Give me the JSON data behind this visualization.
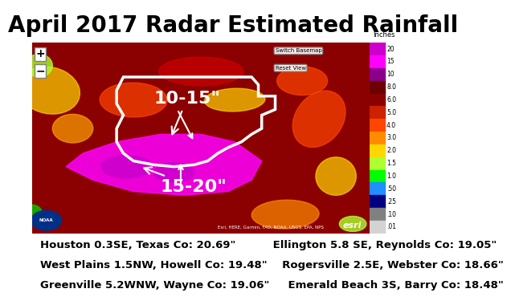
{
  "title": "April 2017 Radar Estimated Rainfall",
  "title_fontsize": 20,
  "title_fontweight": "bold",
  "background_color": "#ffffff",
  "map_bg": "#8B0000",
  "colorbar_labels": [
    "20",
    "15",
    "10",
    "8.0",
    "6.0",
    "5.0",
    "4.0",
    "3.0",
    "2.0",
    "1.5",
    "1.0",
    ".50",
    ".25",
    ".10",
    ".01"
  ],
  "colorbar_colors": [
    "#cc00cc",
    "#ff00ff",
    "#8B008B",
    "#8B0000",
    "#cc0000",
    "#ff4500",
    "#ff8c00",
    "#ffd700",
    "#adff2f",
    "#00ff00",
    "#00bfff",
    "#0000ff",
    "#4b0082",
    "#808080",
    "#d3d3d3"
  ],
  "annotation_label_1": "10-15\"",
  "annotation_label_2": "15-20\"",
  "annotation_color": "#ffffff",
  "annotation_fontsize": 16,
  "footer_lines": [
    "Houston 0.3SE, Texas Co: 20.69\"          Ellington 5.8 SE, Reynolds Co: 19.05\"",
    "West Plains 1.5NW, Howell Co: 19.48\"    Rogersville 2.5E, Webster Co: 18.66\"",
    "Greenville 5.2WNW, Wayne Co: 19.06\"     Emerald Beach 3S, Barry Co: 18.48\""
  ],
  "footer_fontsize": 9.5,
  "inches_label": "Inches",
  "switch_basemap": "Switch Basemap",
  "reset_view": "Reset View",
  "esri_text": "esri",
  "map_credit": "Esri, HERE, Garmin, FAO, NOAA, USGS, EPA, NPS"
}
